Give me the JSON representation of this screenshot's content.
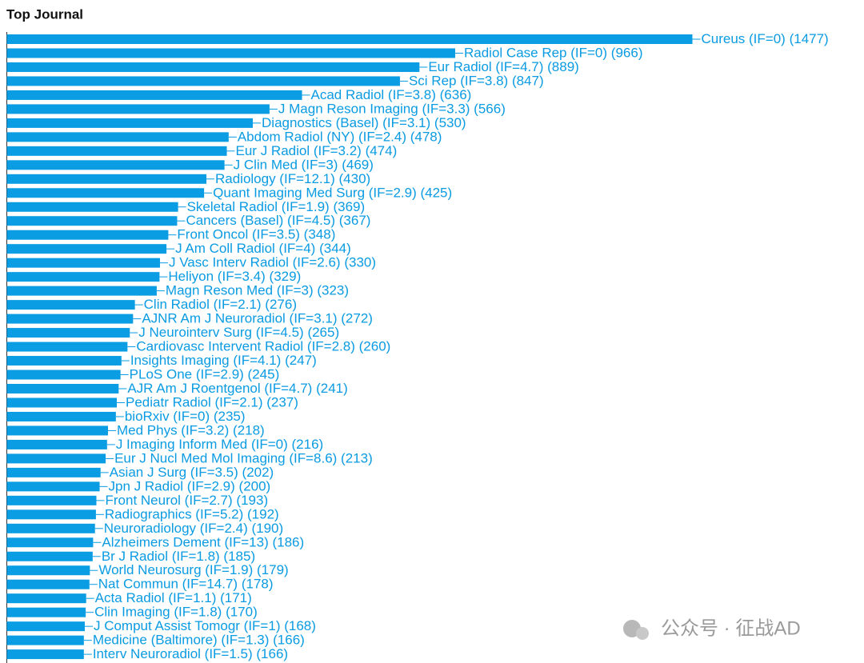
{
  "chart_data": {
    "type": "bar",
    "orientation": "horizontal",
    "title": "Top Journal",
    "color": "#0a9de3",
    "categories": [
      "Cureus (IF=0)",
      "Radiol Case Rep (IF=0)",
      "Eur Radiol (IF=4.7)",
      "Sci Rep (IF=3.8)",
      "Acad Radiol (IF=3.8)",
      "J Magn Reson Imaging (IF=3.3)",
      "Diagnostics (Basel) (IF=3.1)",
      "Abdom Radiol (NY) (IF=2.4)",
      "Eur J Radiol (IF=3.2)",
      "J Clin Med (IF=3)",
      "Radiology (IF=12.1)",
      "Quant Imaging Med Surg (IF=2.9)",
      "Skeletal Radiol (IF=1.9)",
      "Cancers (Basel) (IF=4.5)",
      "Front Oncol (IF=3.5)",
      "J Am Coll Radiol (IF=4)",
      "J Vasc Interv Radiol (IF=2.6)",
      "Heliyon (IF=3.4)",
      "Magn Reson Med (IF=3)",
      "Clin Radiol (IF=2.1)",
      "AJNR Am J Neuroradiol (IF=3.1)",
      "J Neurointerv Surg (IF=4.5)",
      "Cardiovasc Intervent Radiol (IF=2.8)",
      "Insights Imaging (IF=4.1)",
      "PLoS One (IF=2.9)",
      "AJR Am J Roentgenol (IF=4.7)",
      "Pediatr Radiol (IF=2.1)",
      "bioRxiv (IF=0)",
      "Med Phys (IF=3.2)",
      "J Imaging Inform Med (IF=0)",
      "Eur J Nucl Med Mol Imaging (IF=8.6)",
      "Asian J Surg (IF=3.5)",
      "Jpn J Radiol (IF=2.9)",
      "Front Neurol (IF=2.7)",
      "Radiographics (IF=5.2)",
      "Neuroradiology (IF=2.4)",
      "Alzheimers Dement (IF=13)",
      "Br J Radiol (IF=1.8)",
      "World Neurosurg (IF=1.9)",
      "Nat Commun (IF=14.7)",
      "Acta Radiol (IF=1.1)",
      "Clin Imaging (IF=1.8)",
      "J Comput Assist Tomogr (IF=1)",
      "Medicine (Baltimore) (IF=1.3)",
      "Interv Neuroradiol (IF=1.5)"
    ],
    "values": [
      1477,
      966,
      889,
      847,
      636,
      566,
      530,
      478,
      474,
      469,
      430,
      425,
      369,
      367,
      348,
      344,
      330,
      329,
      323,
      276,
      272,
      265,
      260,
      247,
      245,
      241,
      237,
      235,
      218,
      216,
      213,
      202,
      200,
      193,
      192,
      190,
      186,
      185,
      179,
      178,
      171,
      170,
      168,
      166,
      166
    ],
    "value_labels": [
      "(1477)",
      "(966)",
      "(889)",
      "(847)",
      "(636)",
      "(566)",
      "(530)",
      "(478)",
      "(474)",
      "(469)",
      "(430)",
      "(425)",
      "(369)",
      "(367)",
      "(348)",
      "(344)",
      "(330)",
      "(329)",
      "(323)",
      "(276)",
      "(272)",
      "(265)",
      "(260)",
      "(247)",
      "(245)",
      "(241)",
      "(237)",
      "(235)",
      "(218)",
      "(216)",
      "(213)",
      "(202)",
      "(200)",
      "(193)",
      "(192)",
      "(190)",
      "(186)",
      "(185)",
      "(179)",
      "(178)",
      "(171)",
      "(170)",
      "(168)",
      "(166)",
      "(166)"
    ]
  },
  "watermark": "公众号 · 征战AD"
}
